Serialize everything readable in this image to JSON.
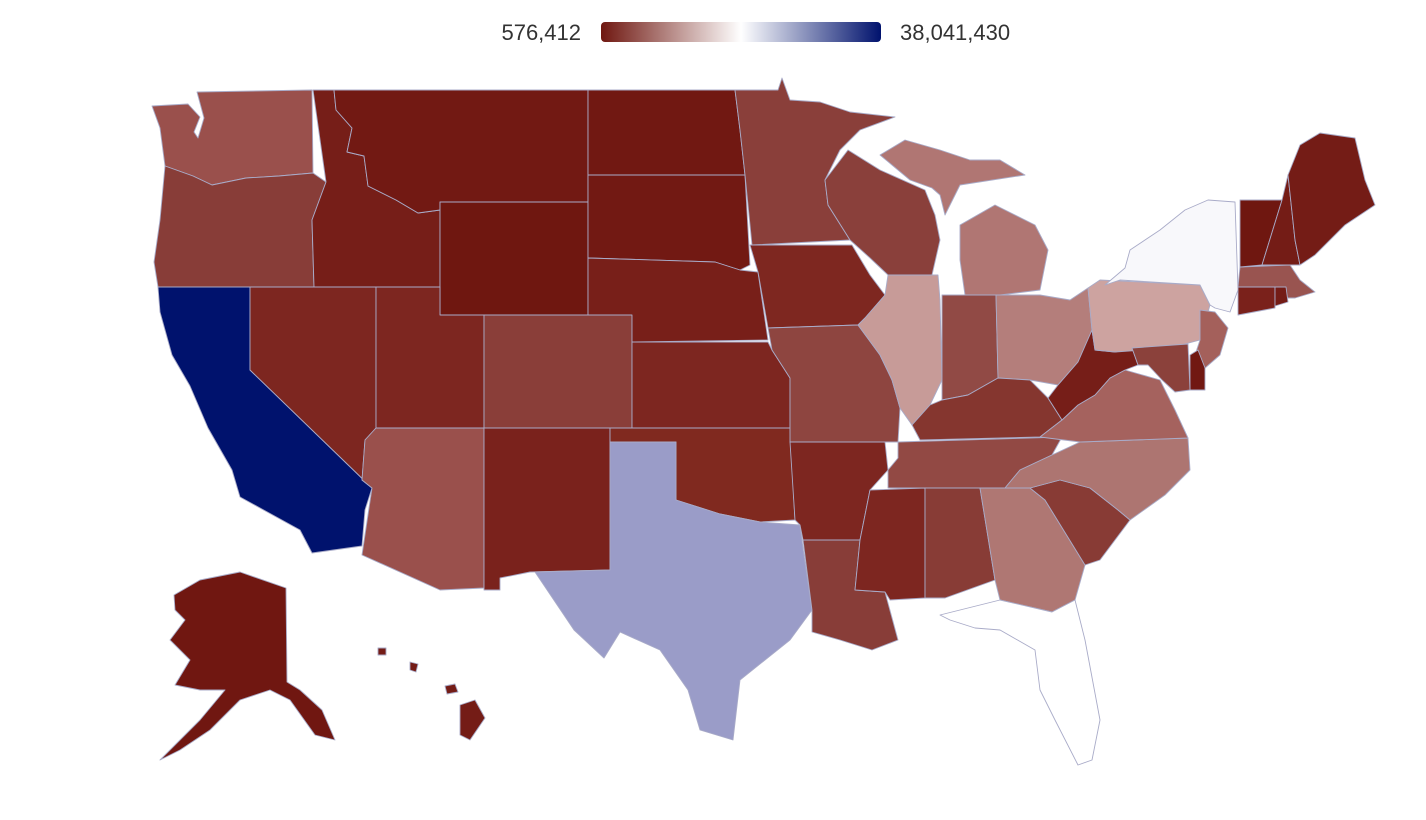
{
  "legend": {
    "min_label": "576,412",
    "max_label": "38,041,430",
    "gradient_colors": [
      "#6f1710",
      "#ffffff",
      "#00126d"
    ]
  },
  "map_data": {
    "type": "choropleth",
    "region": "United States",
    "unit_scale": {
      "min": 576412,
      "mid": 19308921,
      "max": 38041430
    },
    "states": [
      {
        "name": "Washington",
        "color": "#9a504c"
      },
      {
        "name": "Oregon",
        "color": "#883d38"
      },
      {
        "name": "California",
        "color": "#00126d"
      },
      {
        "name": "Idaho",
        "color": "#761e18"
      },
      {
        "name": "Nevada",
        "color": "#7d2620"
      },
      {
        "name": "Montana",
        "color": "#721913"
      },
      {
        "name": "Wyoming",
        "color": "#6f1710"
      },
      {
        "name": "Utah",
        "color": "#7d2620"
      },
      {
        "name": "Arizona",
        "color": "#9a504c"
      },
      {
        "name": "Colorado",
        "color": "#8a3e39"
      },
      {
        "name": "New Mexico",
        "color": "#7a221c"
      },
      {
        "name": "North Dakota",
        "color": "#711812"
      },
      {
        "name": "South Dakota",
        "color": "#721913"
      },
      {
        "name": "Nebraska",
        "color": "#781f19"
      },
      {
        "name": "Kansas",
        "color": "#7d2620"
      },
      {
        "name": "Oklahoma",
        "color": "#80291f"
      },
      {
        "name": "Texas",
        "color": "#9a9cc8"
      },
      {
        "name": "Minnesota",
        "color": "#8a3f3a"
      },
      {
        "name": "Iowa",
        "color": "#7e2720"
      },
      {
        "name": "Missouri",
        "color": "#8e4540"
      },
      {
        "name": "Arkansas",
        "color": "#7d2620"
      },
      {
        "name": "Louisiana",
        "color": "#883d38"
      },
      {
        "name": "Wisconsin",
        "color": "#8a403b"
      },
      {
        "name": "Illinois",
        "color": "#c79b98"
      },
      {
        "name": "Michigan",
        "color": "#b07673"
      },
      {
        "name": "Indiana",
        "color": "#914a45"
      },
      {
        "name": "Ohio",
        "color": "#b47e7b"
      },
      {
        "name": "Kentucky",
        "color": "#85362f"
      },
      {
        "name": "Tennessee",
        "color": "#924944"
      },
      {
        "name": "Mississippi",
        "color": "#7d2620"
      },
      {
        "name": "Alabama",
        "color": "#883c36"
      },
      {
        "name": "Georgia",
        "color": "#af7773"
      },
      {
        "name": "Florida",
        "color": "#ffffff"
      },
      {
        "name": "South Carolina",
        "color": "#883b35"
      },
      {
        "name": "North Carolina",
        "color": "#ad7571"
      },
      {
        "name": "Virginia",
        "color": "#a5625e"
      },
      {
        "name": "West Virginia",
        "color": "#761e18"
      },
      {
        "name": "Pennsylvania",
        "color": "#cda3a0"
      },
      {
        "name": "New York",
        "color": "#f8f8fb"
      },
      {
        "name": "New Jersey",
        "color": "#a4605b"
      },
      {
        "name": "Delaware",
        "color": "#711812"
      },
      {
        "name": "Maryland",
        "color": "#8b413b"
      },
      {
        "name": "Connecticut",
        "color": "#7a211b"
      },
      {
        "name": "Massachusetts",
        "color": "#995450"
      },
      {
        "name": "Rhode Island",
        "color": "#741c16"
      },
      {
        "name": "Vermont",
        "color": "#6f1710"
      },
      {
        "name": "New Hampshire",
        "color": "#741c16"
      },
      {
        "name": "Maine",
        "color": "#741c16"
      },
      {
        "name": "Alaska",
        "color": "#701711"
      },
      {
        "name": "Hawaii",
        "color": "#741c16"
      }
    ]
  }
}
